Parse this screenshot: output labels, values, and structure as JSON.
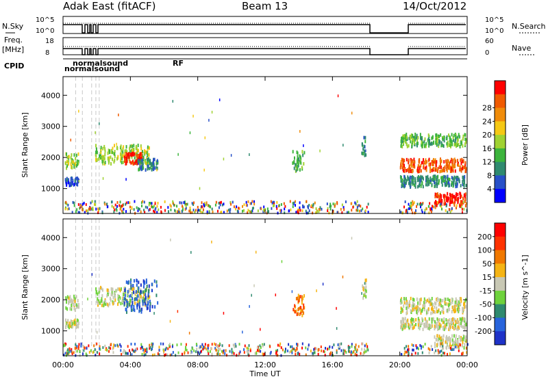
{
  "header": {
    "station": "Adak East (fitACF)",
    "beam": "Beam 13",
    "date": "14/Oct/2012"
  },
  "top_panels": {
    "nsky_label": "N.Sky",
    "nsky_ticks": [
      "10^5",
      "10^0"
    ],
    "nsearch_label": "N.Search",
    "nsearch_ticks": [
      "10^5",
      "10^0"
    ],
    "freq_label": "Freq.",
    "freq_unit": "[MHz]",
    "freq_ticks": [
      "18",
      "8"
    ],
    "nave_label": "Nave",
    "nave_ticks": [
      "60",
      "0"
    ],
    "cpid_label": "CPID",
    "cpid_texts": [
      "normalsound",
      "normalsound",
      "RF"
    ]
  },
  "chart_data": [
    {
      "type": "heatmap",
      "name": "power",
      "ylabel": "Slant Range [km]",
      "yticks": [
        1000,
        2000,
        3000,
        4000
      ],
      "ylim": [
        200,
        4600
      ],
      "xlim": [
        0,
        24
      ],
      "xticks": [
        "00:00",
        "04:00",
        "08:00",
        "12:00",
        "16:00",
        "20:00",
        "00:00"
      ],
      "colorbar": {
        "label": "Power [dB]",
        "ticks": [
          "4",
          "8",
          "12",
          "16",
          "20",
          "24",
          "28"
        ],
        "colors": [
          "#0000ff",
          "#2850c8",
          "#2f8a6f",
          "#3cb43c",
          "#a0d232",
          "#f5c814",
          "#f08c0a",
          "#f05a00",
          "#ff0000"
        ]
      },
      "regions": [
        {
          "t0": 0.1,
          "t1": 0.9,
          "r0": 1700,
          "r1": 2200,
          "c": 4
        },
        {
          "t0": 0.1,
          "t1": 0.9,
          "r0": 1150,
          "r1": 1400,
          "c": 1
        },
        {
          "t0": 1.9,
          "t1": 5.1,
          "r0": 1850,
          "r1": 2450,
          "c": 4
        },
        {
          "t0": 3.6,
          "t1": 4.7,
          "r0": 1850,
          "r1": 2200,
          "c": 8
        },
        {
          "t0": 4.4,
          "t1": 5.6,
          "r0": 1650,
          "r1": 2000,
          "c": 2
        },
        {
          "t0": 13.6,
          "t1": 14.3,
          "r0": 1600,
          "r1": 2250,
          "c": 3
        },
        {
          "t0": 17.7,
          "t1": 18.0,
          "r0": 2100,
          "r1": 2700,
          "c": 2
        },
        {
          "t0": 20.0,
          "t1": 23.9,
          "r0": 1600,
          "r1": 2000,
          "c": 7
        },
        {
          "t0": 20.0,
          "t1": 23.9,
          "r0": 1100,
          "r1": 1450,
          "c": 2
        },
        {
          "t0": 22.0,
          "t1": 23.9,
          "r0": 500,
          "r1": 900,
          "c": 8
        },
        {
          "t0": 20.0,
          "t1": 23.9,
          "r0": 2400,
          "r1": 2800,
          "c": 3
        }
      ]
    },
    {
      "type": "heatmap",
      "name": "velocity",
      "ylabel": "Slant Range [km]",
      "xlabel": "Time UT",
      "yticks": [
        1000,
        2000,
        3000,
        4000
      ],
      "ylim": [
        200,
        4600
      ],
      "xlim": [
        0,
        24
      ],
      "xticks": [
        "00:00",
        "04:00",
        "08:00",
        "12:00",
        "16:00",
        "20:00",
        "00:00"
      ],
      "colorbar": {
        "label": "Velocity [m s^-1]",
        "ticks": [
          "200",
          "100",
          "50",
          "15",
          "-15",
          "-50",
          "-100",
          "-200"
        ],
        "colors": [
          "#1e32c8",
          "#2864dc",
          "#2f8a6f",
          "#6ed23c",
          "#c8c8b4",
          "#f5b414",
          "#f07800",
          "#ff3200",
          "#ff0000"
        ]
      },
      "regions": [
        {
          "t0": 0.1,
          "t1": 0.9,
          "r0": 1700,
          "r1": 2200,
          "c": 4
        },
        {
          "t0": 0.1,
          "t1": 0.9,
          "r0": 1150,
          "r1": 1400,
          "c": 4
        },
        {
          "t0": 1.9,
          "t1": 5.1,
          "r0": 1850,
          "r1": 2450,
          "c": 4
        },
        {
          "t0": 3.6,
          "t1": 5.6,
          "r0": 1650,
          "r1": 2700,
          "c": 1
        },
        {
          "t0": 13.6,
          "t1": 14.3,
          "r0": 1500,
          "r1": 2200,
          "c": 6
        },
        {
          "t0": 17.7,
          "t1": 18.0,
          "r0": 2100,
          "r1": 2700,
          "c": 4
        },
        {
          "t0": 20.0,
          "t1": 23.9,
          "r0": 1600,
          "r1": 2100,
          "c": 4
        },
        {
          "t0": 20.0,
          "t1": 23.9,
          "r0": 1100,
          "r1": 1450,
          "c": 4
        },
        {
          "t0": 22.0,
          "t1": 23.9,
          "r0": 500,
          "r1": 900,
          "c": 4
        }
      ]
    }
  ]
}
